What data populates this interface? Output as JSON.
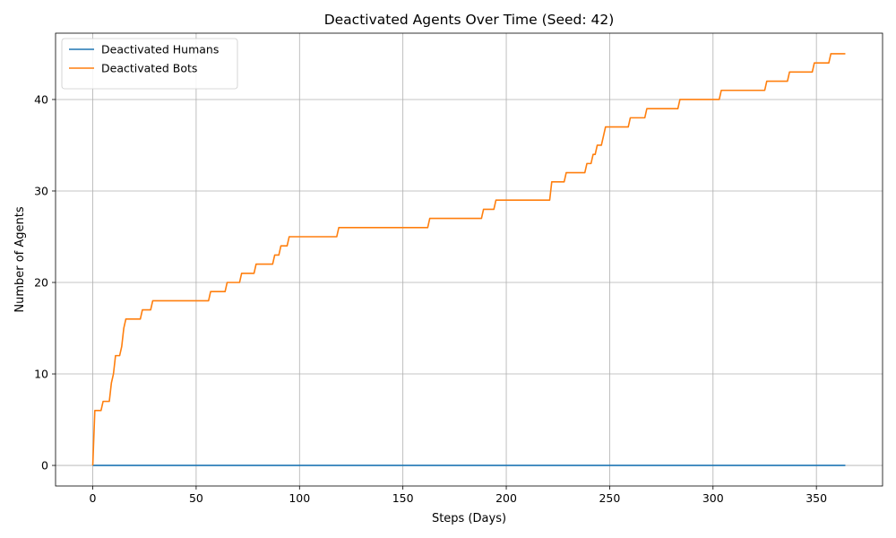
{
  "chart_data": {
    "type": "line",
    "title": "Deactivated Agents Over Time (Seed: 42)",
    "xlabel": "Steps (Days)",
    "ylabel": "Number of Agents",
    "xlim": [
      -18,
      382
    ],
    "ylim": [
      -2.25,
      47.25
    ],
    "xticks": [
      0,
      50,
      100,
      150,
      200,
      250,
      300,
      350
    ],
    "yticks": [
      0,
      10,
      20,
      30,
      40
    ],
    "grid": true,
    "legend_position": "top-left",
    "series": [
      {
        "name": "Deactivated Humans",
        "color": "#1f77b4",
        "x": [
          0,
          364
        ],
        "y": [
          0,
          0
        ]
      },
      {
        "name": "Deactivated Bots",
        "color": "#ff7f0e",
        "x": [
          0,
          1,
          4,
          5,
          8,
          9,
          10,
          11,
          13,
          14,
          15,
          16,
          23,
          24,
          28,
          29,
          56,
          57,
          64,
          65,
          71,
          72,
          78,
          79,
          87,
          88,
          90,
          91,
          94,
          95,
          118,
          119,
          162,
          163,
          188,
          189,
          194,
          195,
          221,
          222,
          228,
          229,
          238,
          239,
          241,
          242,
          243,
          244,
          246,
          247,
          248,
          259,
          260,
          267,
          268,
          283,
          284,
          303,
          304,
          325,
          326,
          336,
          337,
          348,
          349,
          356,
          357,
          364
        ],
        "y": [
          0,
          6,
          6,
          7,
          7,
          9,
          10,
          12,
          12,
          13,
          15,
          16,
          16,
          17,
          17,
          18,
          18,
          19,
          19,
          20,
          20,
          21,
          21,
          22,
          22,
          23,
          23,
          24,
          24,
          25,
          25,
          26,
          26,
          27,
          27,
          28,
          28,
          29,
          29,
          31,
          31,
          32,
          32,
          33,
          33,
          34,
          34,
          35,
          35,
          36,
          37,
          37,
          38,
          38,
          39,
          39,
          40,
          40,
          41,
          41,
          42,
          42,
          43,
          43,
          44,
          44,
          45,
          45
        ]
      }
    ]
  }
}
